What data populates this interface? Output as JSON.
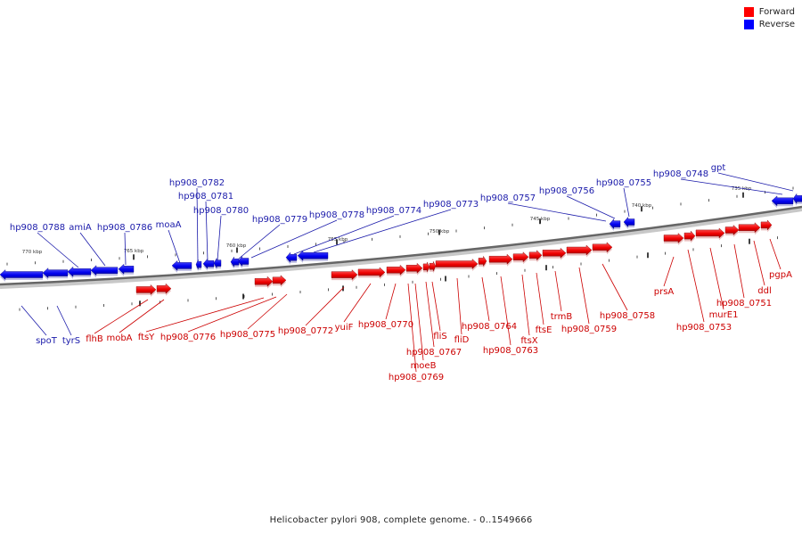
{
  "legend": [
    {
      "label": "Forward",
      "color": "#ff0000"
    },
    {
      "label": "Reverse",
      "color": "#0000ff"
    }
  ],
  "caption": "Helicobacter pylori 908, complete genome. - 0..1549666",
  "colors": {
    "forward": "#ff0000",
    "reverse": "#0000ff",
    "backbone": "#666666",
    "label_forward": "#cc0000",
    "label_reverse": "#1a1aaa"
  },
  "scale_labels": [
    "770 kbp",
    "765 kbp",
    "760 kbp",
    "755 kbp",
    "750 kbp",
    "745 kbp",
    "740 kbp",
    "735 kbp"
  ],
  "reverse_genes": [
    "gpt",
    "hp908_0748",
    "hp908_0755",
    "hp908_0756",
    "hp908_0757",
    "hp908_0773",
    "hp908_0774",
    "hp908_0778",
    "hp908_0779",
    "hp908_0780",
    "hp908_0781",
    "hp908_0782",
    "moaA",
    "hp908_0786",
    "amiA",
    "hp908_0788",
    "tyrS",
    "spoT"
  ],
  "forward_genes": [
    "pgpA",
    "ddl",
    "hp908_0751",
    "murE1",
    "hp908_0753",
    "prsA",
    "hp908_0758",
    "hp908_0759",
    "trmB",
    "ftsE",
    "ftsX",
    "hp908_0763",
    "hp908_0764",
    "fliD",
    "fliS",
    "hp908_0767",
    "moeB",
    "hp908_0769",
    "hp908_0770",
    "yuiF",
    "hp908_0772",
    "hp908_0775",
    "hp908_0776",
    "ftsY",
    "mobA",
    "flhB"
  ]
}
